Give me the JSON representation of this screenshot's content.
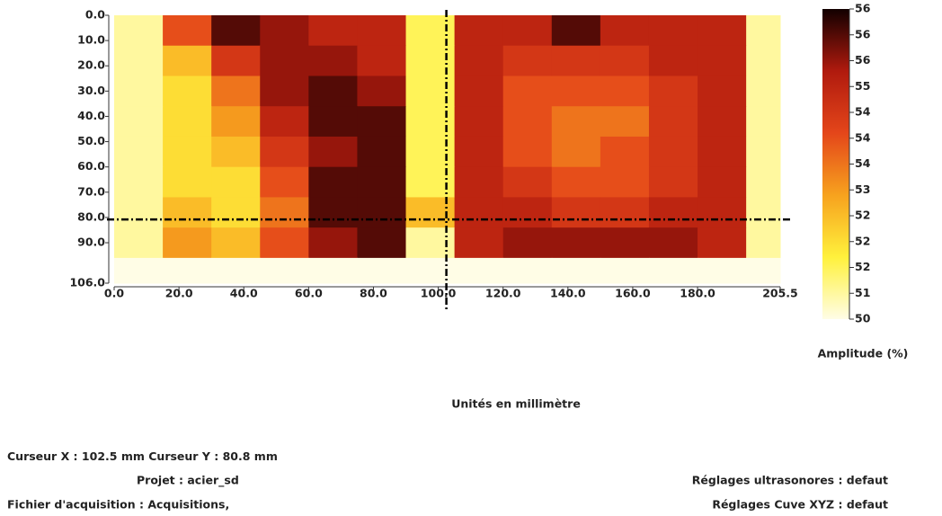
{
  "chart_data": {
    "type": "heatmap",
    "x_label": "Unités en millimètre",
    "colorbar_title": "Amplitude (%)",
    "x_bins": [
      0,
      15,
      30,
      45,
      60,
      75,
      90,
      105,
      120,
      135,
      150,
      165,
      180,
      195,
      205.5
    ],
    "y_bins": [
      0,
      12,
      24,
      36,
      48,
      60,
      72,
      84,
      96,
      106
    ],
    "values": [
      [
        50.5,
        53.5,
        55.5,
        55,
        54.5,
        54.5,
        51,
        54.5,
        54.5,
        55.5,
        54.5,
        54.5,
        54.5,
        50.5
      ],
      [
        50.5,
        52,
        54,
        55,
        55,
        54.5,
        51,
        54.5,
        54,
        54,
        54,
        54.5,
        54.5,
        50.5
      ],
      [
        50.5,
        51.5,
        53,
        55,
        55.5,
        55,
        51,
        54.5,
        53.5,
        53.5,
        53.5,
        54,
        54.5,
        50.5
      ],
      [
        50.5,
        51.5,
        52.5,
        54.5,
        55.5,
        55.5,
        51,
        54.5,
        53.5,
        53,
        53,
        54,
        54.5,
        50.5
      ],
      [
        50.5,
        51.5,
        52,
        54,
        55,
        55.5,
        51,
        54.5,
        53.5,
        53,
        53.5,
        54,
        54.5,
        50.5
      ],
      [
        50.5,
        51.5,
        51.5,
        53.5,
        55.5,
        55.5,
        51,
        54.5,
        54,
        53.5,
        53.5,
        54,
        54.5,
        50.5
      ],
      [
        50.5,
        52,
        51.5,
        53,
        55.5,
        55.5,
        52,
        54.5,
        54.5,
        54,
        54,
        54.5,
        54.5,
        50.5
      ],
      [
        50.5,
        52.5,
        52,
        53.5,
        55,
        55.5,
        50.5,
        54.5,
        55,
        55,
        55,
        55,
        54.5,
        50.5
      ],
      [
        50,
        50,
        50,
        50,
        50,
        50,
        50,
        50,
        50,
        50,
        50,
        50,
        50,
        50
      ]
    ],
    "xlim": [
      0,
      205.5
    ],
    "ylim": [
      0,
      106
    ],
    "y_inverted": true,
    "xticks": [
      {
        "value": 0,
        "label": "0.0"
      },
      {
        "value": 20,
        "label": "20.0"
      },
      {
        "value": 40,
        "label": "40.0"
      },
      {
        "value": 60,
        "label": "60.0"
      },
      {
        "value": 80,
        "label": "80.0"
      },
      {
        "value": 100,
        "label": "100.0"
      },
      {
        "value": 120,
        "label": "120.0"
      },
      {
        "value": 140,
        "label": "140.0"
      },
      {
        "value": 160,
        "label": "160.0"
      },
      {
        "value": 180,
        "label": "180.0"
      },
      205.5
    ],
    "yticks": [
      {
        "value": 0,
        "label": "0.0"
      },
      {
        "value": 10,
        "label": "10.0"
      },
      {
        "value": 20,
        "label": "20.0"
      },
      {
        "value": 30,
        "label": "30.0"
      },
      {
        "value": 40,
        "label": "40.0"
      },
      {
        "value": 50,
        "label": "50.0"
      },
      {
        "value": 60,
        "label": "60.0"
      },
      {
        "value": 70,
        "label": "70.0"
      },
      {
        "value": 80,
        "label": "80.0"
      },
      {
        "value": 90,
        "label": "90.0"
      },
      {
        "value": 106,
        "label": "106.0"
      }
    ],
    "zlim": [
      50,
      56
    ],
    "colorbar_labels": [
      56,
      56,
      56,
      55,
      54,
      54,
      54,
      53,
      52,
      52,
      52,
      51,
      50
    ],
    "colormap": [
      "#fffde6",
      "#fff13c",
      "#f7a21e",
      "#e4461a",
      "#b01a0e",
      "#120000"
    ],
    "cursor": {
      "x_label": "Curseur X :",
      "x": 102.5,
      "y_label": "Curseur Y :",
      "y": 80.8,
      "unit": "mm"
    }
  },
  "info": {
    "project": "Projet : acier_sd",
    "file": "Fichier d'acquisition : Acquisitions,",
    "ultrasound": "Réglages ultrasonores : defaut",
    "tank": "Réglages Cuve XYZ : defaut"
  }
}
